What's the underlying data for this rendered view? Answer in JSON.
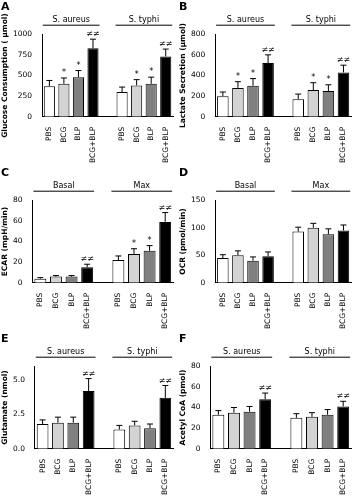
{
  "chart_data": [
    {
      "type": "bar",
      "title": "A",
      "y_label": "Glucose Consumption ( μmol)",
      "categories": [
        "PBS",
        "BCG",
        "BLP",
        "BCG+BLP",
        "PBS",
        "BCG",
        "BLP",
        "BCG+BLP"
      ],
      "groups": [
        "S. aureus",
        "S. typhi"
      ],
      "values": [
        370,
        400,
        480,
        830,
        300,
        380,
        400,
        730
      ],
      "errors": [
        70,
        70,
        80,
        110,
        60,
        70,
        80,
        90
      ],
      "annotations": [
        null,
        "*",
        "*",
        "≠≠",
        null,
        "*",
        "*",
        "≠≠"
      ],
      "colors": [
        "#ffffff",
        "#d3d3d3",
        "#808080",
        "#000000",
        "#ffffff",
        "#d3d3d3",
        "#808080",
        "#000000"
      ],
      "ylim": [
        0,
        1000
      ],
      "yticks": [
        0,
        250,
        500,
        750,
        1000
      ],
      "grid": false
    },
    {
      "type": "bar",
      "title": "B",
      "y_label": "Lactate Secretion (μmol)",
      "categories": [
        "PBS",
        "BCG",
        "BLP",
        "BCG+BLP",
        "PBS",
        "BCG",
        "BLP",
        "BCG+BLP"
      ],
      "groups": [
        "S. aureus",
        "S. typhi"
      ],
      "values": [
        200,
        280,
        300,
        520,
        170,
        260,
        250,
        430
      ],
      "errors": [
        40,
        60,
        70,
        80,
        50,
        70,
        60,
        70
      ],
      "annotations": [
        null,
        "*",
        "*",
        "≠≠",
        null,
        "*",
        "*",
        "≠≠"
      ],
      "colors": [
        "#ffffff",
        "#d3d3d3",
        "#808080",
        "#000000",
        "#ffffff",
        "#d3d3d3",
        "#808080",
        "#000000"
      ],
      "ylim": [
        0,
        800
      ],
      "yticks": [
        0,
        200,
        400,
        600,
        800
      ],
      "grid": false
    },
    {
      "type": "bar",
      "title": "C",
      "y_label": "ECAR (mpH/min)",
      "categories": [
        "PBS",
        "BCG",
        "BLP",
        "BCG+BLP",
        "PBS",
        "BCG",
        "BLP",
        "BCG+BLP"
      ],
      "groups": [
        "Basal",
        "Max"
      ],
      "values": [
        4,
        6,
        6,
        15,
        22,
        28,
        31,
        59
      ],
      "errors": [
        1,
        1,
        1,
        3,
        4,
        5,
        5,
        9
      ],
      "annotations": [
        null,
        null,
        null,
        "≠≠",
        null,
        "*",
        "*",
        "≠≠"
      ],
      "colors": [
        "#ffffff",
        "#d3d3d3",
        "#808080",
        "#000000",
        "#ffffff",
        "#d3d3d3",
        "#808080",
        "#000000"
      ],
      "ylim": [
        0,
        80
      ],
      "yticks": [
        0,
        20,
        40,
        60,
        80
      ],
      "grid": false
    },
    {
      "type": "bar",
      "title": "D",
      "y_label": "OCR (pmol/min)",
      "categories": [
        "PBS",
        "BCG",
        "BLP",
        "BCG+BLP",
        "PBS",
        "BCG",
        "BLP",
        "BCG+BLP"
      ],
      "groups": [
        "Basal",
        "Max"
      ],
      "values": [
        45,
        50,
        40,
        48,
        93,
        100,
        88,
        95
      ],
      "errors": [
        6,
        8,
        7,
        8,
        8,
        8,
        10,
        10
      ],
      "annotations": [
        null,
        null,
        null,
        null,
        null,
        null,
        null,
        null
      ],
      "colors": [
        "#ffffff",
        "#d3d3d3",
        "#808080",
        "#000000",
        "#ffffff",
        "#d3d3d3",
        "#808080",
        "#000000"
      ],
      "ylim": [
        0,
        150
      ],
      "yticks": [
        0,
        50,
        100,
        150
      ],
      "grid": false
    },
    {
      "type": "bar",
      "title": "E",
      "y_label": "Glutamate (nmol)",
      "categories": [
        "PBS",
        "BCG",
        "BLP",
        "BCG+BLP",
        "PBS",
        "BCG",
        "BLP",
        "BCG+BLP"
      ],
      "groups": [
        "S. aureus",
        "S. typhi"
      ],
      "values": [
        1.8,
        1.9,
        1.9,
        4.2,
        1.4,
        1.7,
        1.5,
        3.7
      ],
      "errors": [
        0.3,
        0.4,
        0.4,
        0.9,
        0.3,
        0.3,
        0.3,
        0.9
      ],
      "annotations": [
        null,
        null,
        null,
        "≠≠",
        null,
        null,
        null,
        "≠≠"
      ],
      "colors": [
        "#ffffff",
        "#d3d3d3",
        "#808080",
        "#000000",
        "#ffffff",
        "#d3d3d3",
        "#808080",
        "#000000"
      ],
      "ylim": [
        0,
        6
      ],
      "yticks": [
        {
          "value": 0,
          "label": "0.0"
        },
        {
          "value": 2.5,
          "label": "2.5"
        },
        {
          "value": 5,
          "label": "5.0"
        }
      ],
      "grid": false
    },
    {
      "type": "bar",
      "title": "F",
      "y_label": "Acetyl CoA (pmol)",
      "categories": [
        "PBS",
        "BCG",
        "BLP",
        "BCG+BLP",
        "PBS",
        "BCG",
        "BLP",
        "BCG+BLP"
      ],
      "groups": [
        "S. aureus",
        "S. typhi"
      ],
      "values": [
        33,
        35,
        36,
        48,
        30,
        31,
        33,
        41
      ],
      "errors": [
        4,
        5,
        5,
        6,
        4,
        4,
        5,
        5
      ],
      "annotations": [
        null,
        null,
        null,
        "≠≠",
        null,
        null,
        null,
        "≠≠"
      ],
      "colors": [
        "#ffffff",
        "#d3d3d3",
        "#808080",
        "#000000",
        "#ffffff",
        "#d3d3d3",
        "#808080",
        "#000000"
      ],
      "ylim": [
        0,
        80
      ],
      "yticks": [
        0,
        20,
        40,
        60,
        80
      ],
      "grid": false
    }
  ]
}
